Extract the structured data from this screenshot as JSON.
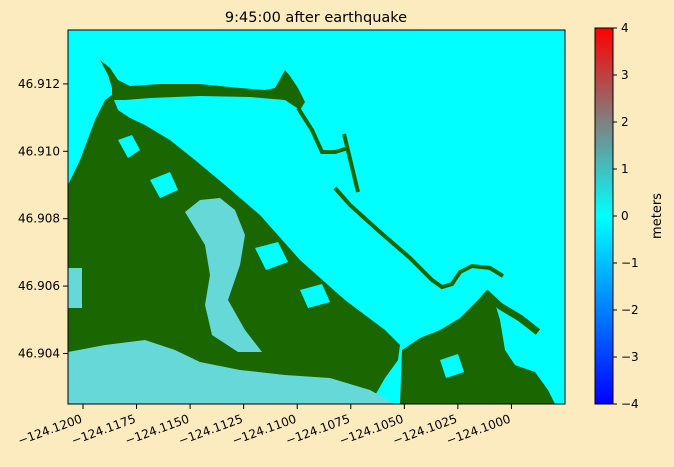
{
  "chart_data": {
    "type": "heatmap",
    "title": "9:45:00 after earthquake",
    "xlim": [
      -124.1207,
      -124.0975
    ],
    "ylim": [
      46.9025,
      46.9136
    ],
    "x_ticks": [
      -124.12,
      -124.1175,
      -124.115,
      -124.1125,
      -124.11,
      -124.1075,
      -124.105,
      -124.1025,
      -124.1
    ],
    "x_tick_labels": [
      "−124.1200",
      "−124.1175",
      "−124.1150",
      "−124.1125",
      "−124.1100",
      "−124.1075",
      "−124.1050",
      "−124.1025",
      "−124.1000"
    ],
    "y_ticks": [
      46.904,
      46.906,
      46.908,
      46.91,
      46.912
    ],
    "y_tick_labels": [
      "46.904",
      "46.906",
      "46.908",
      "46.910",
      "46.912"
    ],
    "colorbar": {
      "label": "meters",
      "range": [
        -4,
        4
      ],
      "ticks": [
        -4,
        -3,
        -2,
        -1,
        0,
        1,
        2,
        3,
        4
      ],
      "tick_labels": [
        "−4",
        "−3",
        "−2",
        "−1",
        "0",
        "1",
        "2",
        "3",
        "4"
      ],
      "colors": [
        "#0000ff",
        "#0080ff",
        "#00ffff",
        "#808080",
        "#ff0000"
      ]
    },
    "background_value": 0,
    "colors": {
      "water": "#00ffff",
      "land": "#1a6600",
      "shallow": "#66d8d8",
      "background": "#fdebc0"
    }
  }
}
